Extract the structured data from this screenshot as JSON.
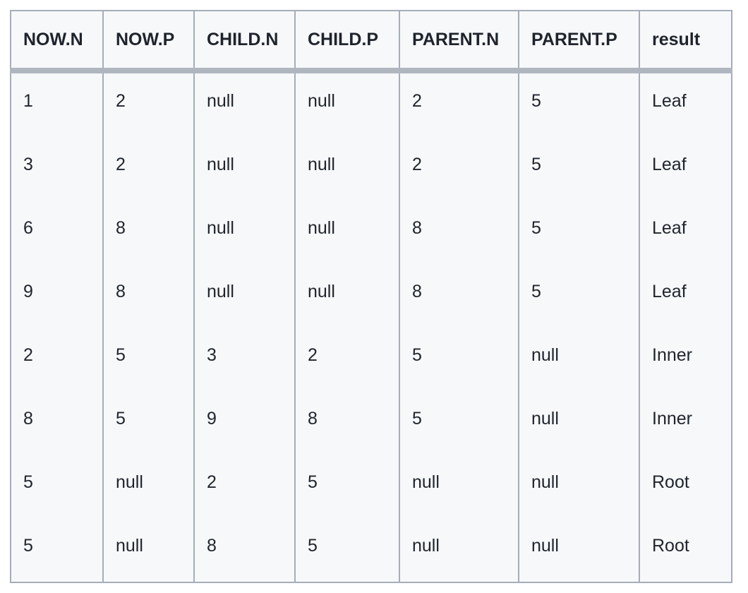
{
  "table": {
    "columns": [
      "NOW.N",
      "NOW.P",
      "CHILD.N",
      "CHILD.P",
      "PARENT.N",
      "PARENT.P",
      "result"
    ],
    "rows": [
      [
        "1",
        "2",
        "null",
        "null",
        "2",
        "5",
        "Leaf"
      ],
      [
        "3",
        "2",
        "null",
        "null",
        "2",
        "5",
        "Leaf"
      ],
      [
        "6",
        "8",
        "null",
        "null",
        "8",
        "5",
        "Leaf"
      ],
      [
        "9",
        "8",
        "null",
        "null",
        "8",
        "5",
        "Leaf"
      ],
      [
        "2",
        "5",
        "3",
        "2",
        "5",
        "null",
        "Inner"
      ],
      [
        "8",
        "5",
        "9",
        "8",
        "5",
        "null",
        "Inner"
      ],
      [
        "5",
        "null",
        "2",
        "5",
        "null",
        "null",
        "Root"
      ],
      [
        "5",
        "null",
        "8",
        "5",
        "null",
        "null",
        "Root"
      ]
    ]
  },
  "chart_data": {
    "type": "table",
    "title": "",
    "columns": [
      "NOW.N",
      "NOW.P",
      "CHILD.N",
      "CHILD.P",
      "PARENT.N",
      "PARENT.P",
      "result"
    ],
    "rows": [
      [
        "1",
        "2",
        "null",
        "null",
        "2",
        "5",
        "Leaf"
      ],
      [
        "3",
        "2",
        "null",
        "null",
        "2",
        "5",
        "Leaf"
      ],
      [
        "6",
        "8",
        "null",
        "null",
        "8",
        "5",
        "Leaf"
      ],
      [
        "9",
        "8",
        "null",
        "null",
        "8",
        "5",
        "Leaf"
      ],
      [
        "2",
        "5",
        "3",
        "2",
        "5",
        "null",
        "Inner"
      ],
      [
        "8",
        "5",
        "9",
        "8",
        "5",
        "null",
        "Inner"
      ],
      [
        "5",
        "null",
        "2",
        "5",
        "null",
        "null",
        "Root"
      ],
      [
        "5",
        "null",
        "8",
        "5",
        "null",
        "null",
        "Root"
      ]
    ],
    "layout": {
      "header_position": "top",
      "row_dividers": false,
      "column_dividers": true,
      "thick_header_divider": true
    }
  },
  "colors": {
    "cell_background": "#f6f8fa",
    "border": "#a6adb8",
    "header_divider": "#b0b6c0",
    "text": "#1f242c",
    "page_background": "#ffffff"
  }
}
